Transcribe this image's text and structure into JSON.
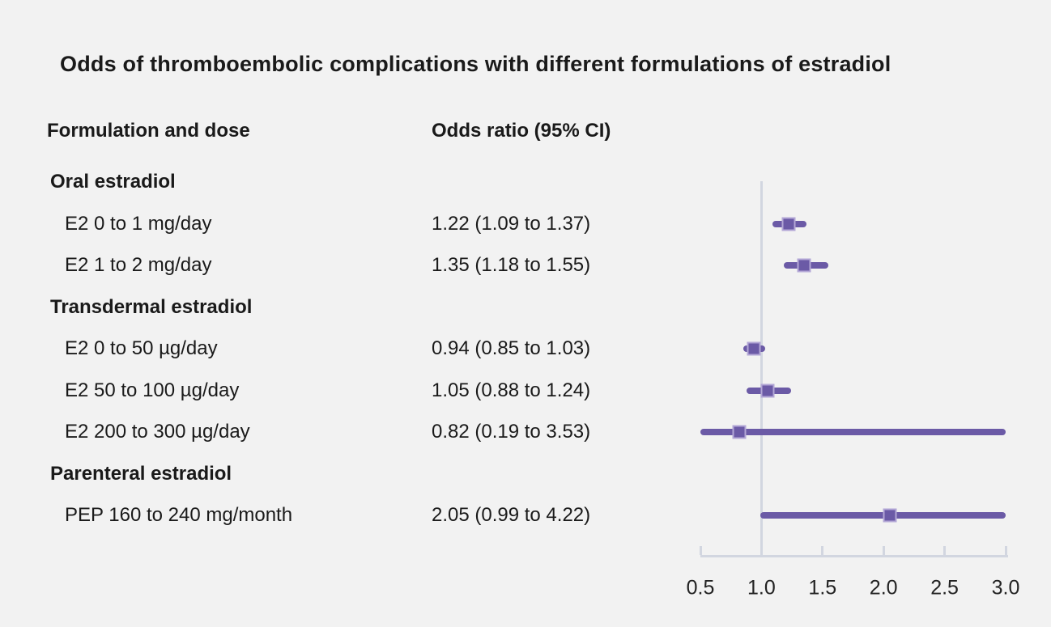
{
  "title": "Odds of thromboembolic complications with different formulations of estradiol",
  "columns": {
    "formulation": "Formulation and dose",
    "odds_ratio": "Odds ratio (95% CI)"
  },
  "colors": {
    "background": "#f2f2f2",
    "text": "#1a1a1a",
    "purple": "#6b5aa6",
    "marker_edge": "#b3a7d6",
    "axis_gray": "#d2d6e0"
  },
  "chart_data": {
    "type": "forest",
    "title": "Odds of thromboembolic complications with different formulations of estradiol",
    "xlabel": "",
    "xlim": [
      0.5,
      3.0
    ],
    "ticks": [
      "0.5",
      "1.0",
      "1.5",
      "2.0",
      "2.5",
      "3.0"
    ],
    "tick_values": [
      0.5,
      1.0,
      1.5,
      2.0,
      2.5,
      3.0
    ],
    "reference_value": 1.0,
    "grid": false,
    "legend": false,
    "rows": [
      {
        "kind": "group",
        "label": "Oral estradiol"
      },
      {
        "kind": "item",
        "label": "E2 0 to 1 mg/day",
        "or_label": "1.22 (1.09 to 1.37)",
        "estimate": 1.22,
        "ci_low": 1.09,
        "ci_high": 1.37
      },
      {
        "kind": "item",
        "label": "E2 1 to 2 mg/day",
        "or_label": "1.35 (1.18 to 1.55)",
        "estimate": 1.35,
        "ci_low": 1.18,
        "ci_high": 1.55
      },
      {
        "kind": "group",
        "label": "Transdermal estradiol"
      },
      {
        "kind": "item",
        "label": "E2 0 to 50 µg/day",
        "or_label": "0.94 (0.85 to 1.03)",
        "estimate": 0.94,
        "ci_low": 0.85,
        "ci_high": 1.03
      },
      {
        "kind": "item",
        "label": "E2 50 to 100 µg/day",
        "or_label": "1.05 (0.88 to 1.24)",
        "estimate": 1.05,
        "ci_low": 0.88,
        "ci_high": 1.24
      },
      {
        "kind": "item",
        "label": "E2 200 to 300 µg/day",
        "or_label": "0.82 (0.19 to 3.53)",
        "estimate": 0.82,
        "ci_low": 0.19,
        "ci_high": 3.53
      },
      {
        "kind": "group",
        "label": "Parenteral estradiol"
      },
      {
        "kind": "item",
        "label": "PEP 160 to 240 mg/month",
        "or_label": "2.05 (0.99 to 4.22)",
        "estimate": 2.05,
        "ci_low": 0.99,
        "ci_high": 4.22
      }
    ]
  }
}
